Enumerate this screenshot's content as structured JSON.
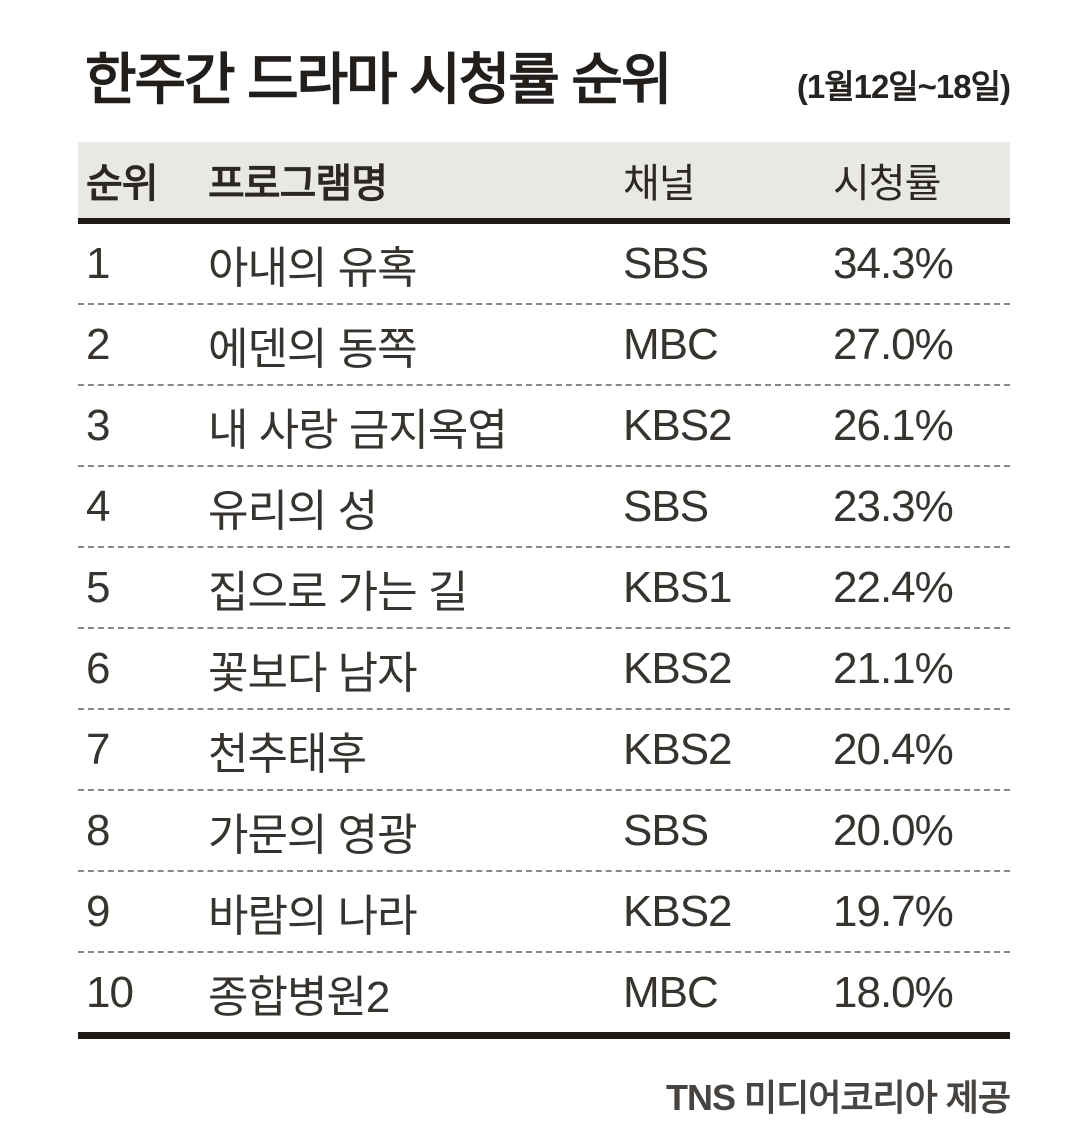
{
  "header": {
    "title": "한주간 드라마 시청률 순위",
    "date_range": "(1월12일~18일)"
  },
  "footer": {
    "credit": "TNS 미디어코리아 제공"
  },
  "colors": {
    "header_bg": "#e9e8e5",
    "heavy_rule": "#1d1a17",
    "dashed_rule": "#878787",
    "text": "#37332f"
  },
  "chart_data": {
    "type": "table",
    "title": "한주간 드라마 시청률 순위",
    "subtitle": "(1월12일~18일)",
    "columns": [
      "순위",
      "프로그램명",
      "채널",
      "시청률"
    ],
    "rows": [
      {
        "rank": "1",
        "program": "아내의 유혹",
        "channel": "SBS",
        "rating": "34.3%"
      },
      {
        "rank": "2",
        "program": "에덴의 동쪽",
        "channel": "MBC",
        "rating": "27.0%"
      },
      {
        "rank": "3",
        "program": "내 사랑 금지옥엽",
        "channel": "KBS2",
        "rating": "26.1%"
      },
      {
        "rank": "4",
        "program": "유리의 성",
        "channel": "SBS",
        "rating": "23.3%"
      },
      {
        "rank": "5",
        "program": "집으로 가는 길",
        "channel": "KBS1",
        "rating": "22.4%"
      },
      {
        "rank": "6",
        "program": "꽃보다 남자",
        "channel": "KBS2",
        "rating": "21.1%"
      },
      {
        "rank": "7",
        "program": "천추태후",
        "channel": "KBS2",
        "rating": "20.4%"
      },
      {
        "rank": "8",
        "program": "가문의 영광",
        "channel": "SBS",
        "rating": "20.0%"
      },
      {
        "rank": "9",
        "program": "바람의 나라",
        "channel": "KBS2",
        "rating": "19.7%"
      },
      {
        "rank": "10",
        "program": "종합병원2",
        "channel": "MBC",
        "rating": "18.0%"
      }
    ],
    "source": "TNS 미디어코리아 제공",
    "values_unit": "%",
    "ratings_values": [
      34.3,
      27.0,
      26.1,
      23.3,
      22.4,
      21.1,
      20.4,
      20.0,
      19.7,
      18.0
    ]
  }
}
